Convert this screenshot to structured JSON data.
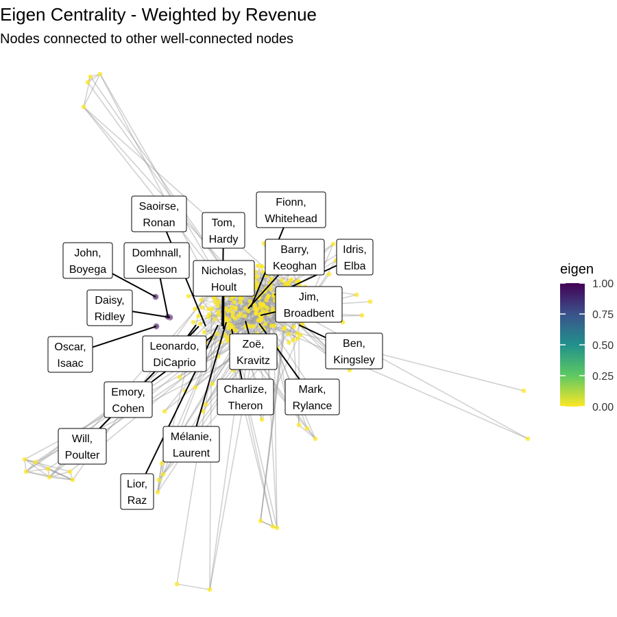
{
  "title": "Eigen Centrality - Weighted by Revenue",
  "subtitle": "Nodes connected to other well-connected nodes",
  "legend": {
    "title": "eigen",
    "ticks": [
      "1.00",
      "0.75",
      "0.50",
      "0.25",
      "0.00"
    ],
    "gradient": [
      "#440154",
      "#3b528b",
      "#21918c",
      "#5ec962",
      "#fde725"
    ]
  },
  "colors": {
    "edge": "#9a9a9a",
    "low_node": "#fde725",
    "high_node": "#6b4a7e",
    "label_line": "#000000"
  },
  "labels": [
    {
      "id": "saoirse-ronan",
      "lines": [
        "Saoirse,",
        "Ronan"
      ]
    },
    {
      "id": "fionn-whitehead",
      "lines": [
        "Fionn,",
        "Whitehead"
      ]
    },
    {
      "id": "tom-hardy",
      "lines": [
        "Tom,",
        "Hardy"
      ]
    },
    {
      "id": "john-boyega",
      "lines": [
        "John,",
        "Boyega"
      ]
    },
    {
      "id": "domhnall-gleeson",
      "lines": [
        "Domhnall,",
        "Gleeson"
      ]
    },
    {
      "id": "barry-keoghan",
      "lines": [
        "Barry,",
        "Keoghan"
      ]
    },
    {
      "id": "idris-elba",
      "lines": [
        "Idris,",
        "Elba"
      ]
    },
    {
      "id": "nicholas-hoult",
      "lines": [
        "Nicholas,",
        "Hoult"
      ]
    },
    {
      "id": "daisy-ridley",
      "lines": [
        "Daisy,",
        "Ridley"
      ]
    },
    {
      "id": "jim-broadbent",
      "lines": [
        "Jim,",
        "Broadbent"
      ]
    },
    {
      "id": "oscar-isaac",
      "lines": [
        "Oscar,",
        "Isaac"
      ]
    },
    {
      "id": "leonardo-dicaprio",
      "lines": [
        "Leonardo,",
        "DiCaprio"
      ]
    },
    {
      "id": "zoe-kravitz",
      "lines": [
        "Zoë,",
        "Kravitz"
      ]
    },
    {
      "id": "ben-kingsley",
      "lines": [
        "Ben,",
        "Kingsley"
      ]
    },
    {
      "id": "emory-cohen",
      "lines": [
        "Emory,",
        "Cohen"
      ]
    },
    {
      "id": "charlize-theron",
      "lines": [
        "Charlize,",
        "Theron"
      ]
    },
    {
      "id": "mark-rylance",
      "lines": [
        "Mark,",
        "Rylance"
      ]
    },
    {
      "id": "will-poulter",
      "lines": [
        "Will,",
        "Poulter"
      ]
    },
    {
      "id": "melanie-laurent",
      "lines": [
        "Mélanie,",
        "Laurent"
      ]
    },
    {
      "id": "lior-raz",
      "lines": [
        "Lior,",
        "Raz"
      ]
    }
  ]
}
